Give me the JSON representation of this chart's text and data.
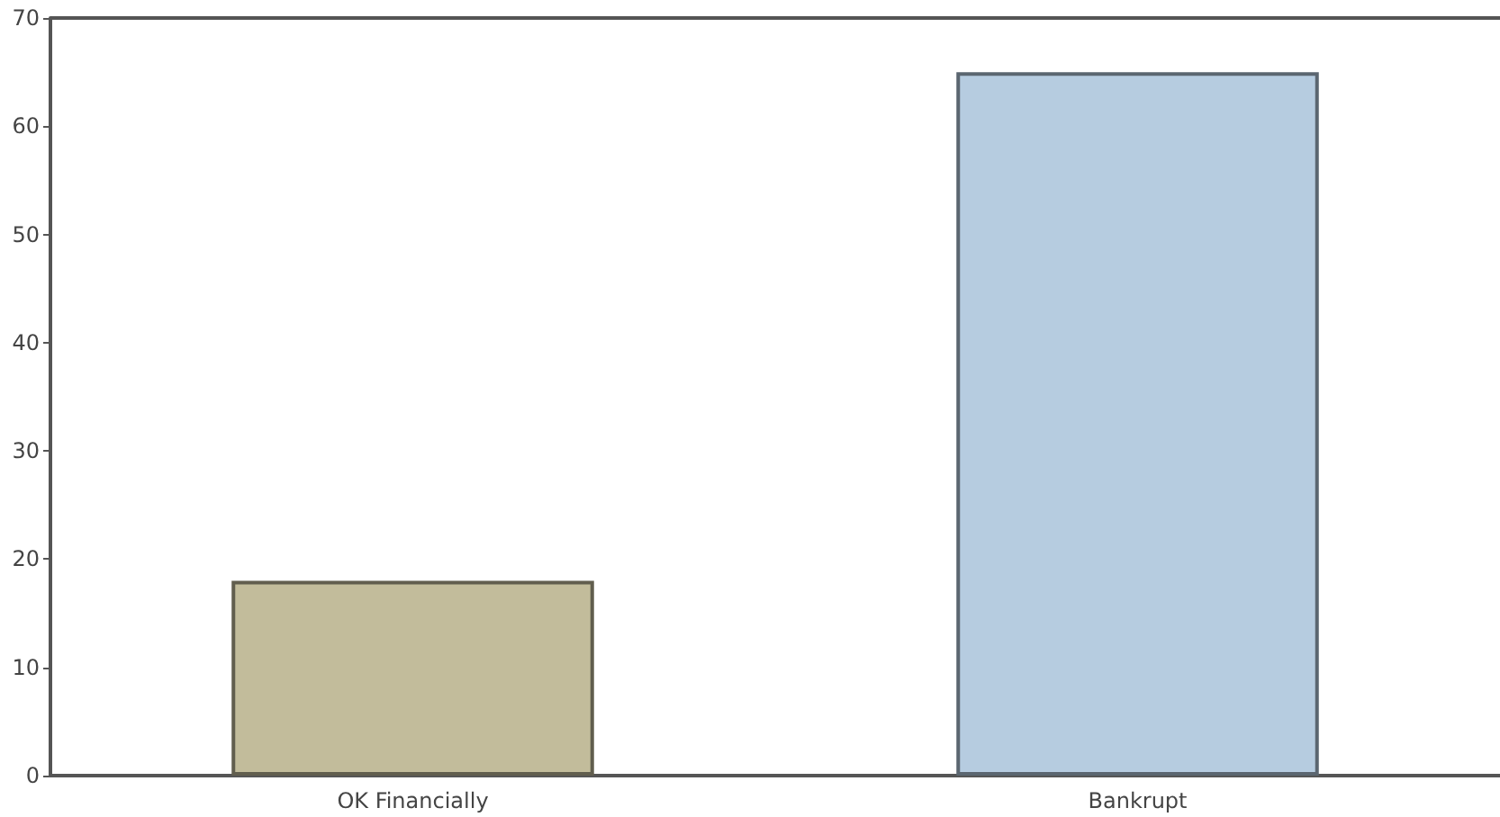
{
  "chart_data": {
    "type": "bar",
    "categories": [
      "OK Financially",
      "Bankrupt"
    ],
    "values": [
      18,
      65
    ],
    "colors": [
      "#c2bc9b",
      "#b6cce0"
    ],
    "ylim": [
      0,
      70
    ],
    "yticks": [
      0,
      10,
      20,
      30,
      40,
      50,
      60,
      70
    ]
  }
}
